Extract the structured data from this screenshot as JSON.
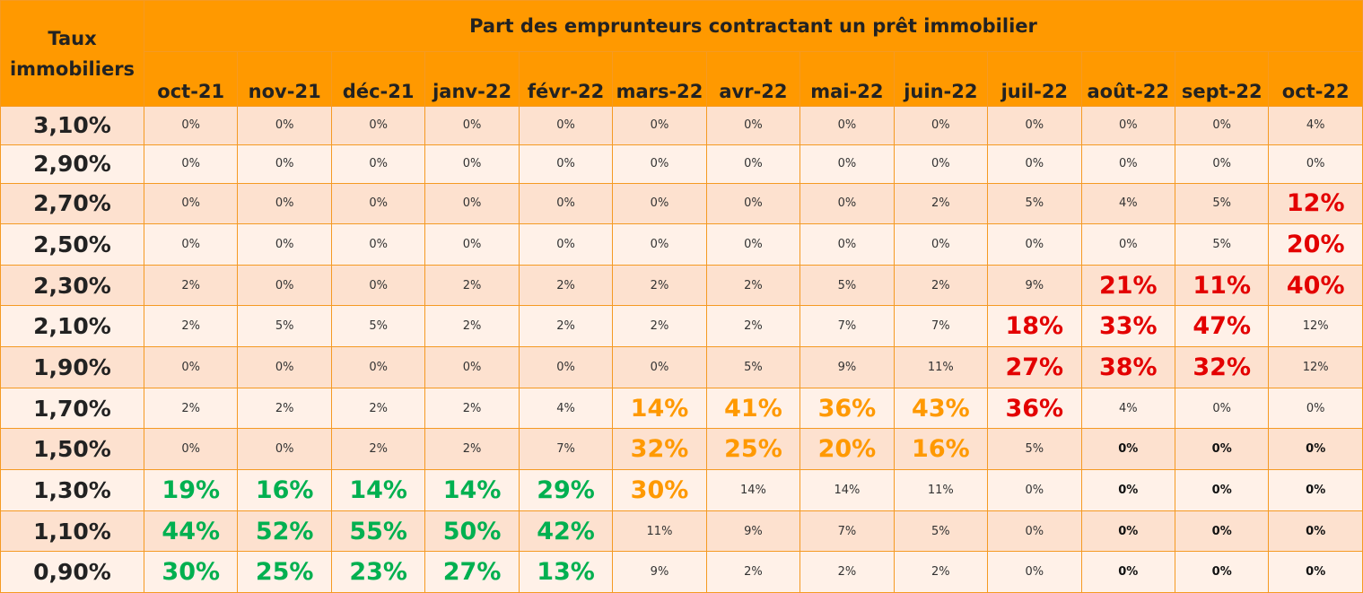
{
  "header": {
    "corner": "Taux immobiliers",
    "title": "Part des emprunteurs contractant un prêt immobilier",
    "columns": [
      "oct-21",
      "nov-21",
      "déc-21",
      "janv-22",
      "févr-22",
      "mars-22",
      "avr-22",
      "mai-22",
      "juin-22",
      "juil-22",
      "août-22",
      "sept-22",
      "oct-22"
    ]
  },
  "table": {
    "rows": [
      {
        "rate": "3,10%",
        "cells": [
          "0%",
          "0%",
          "0%",
          "0%",
          "0%",
          "0%",
          "0%",
          "0%",
          "0%",
          "0%",
          "0%",
          "0%",
          "4%"
        ]
      },
      {
        "rate": "2,90%",
        "cells": [
          "0%",
          "0%",
          "0%",
          "0%",
          "0%",
          "0%",
          "0%",
          "0%",
          "0%",
          "0%",
          "0%",
          "0%",
          "0%"
        ]
      },
      {
        "rate": "2,70%",
        "cells": [
          "0%",
          "0%",
          "0%",
          "0%",
          "0%",
          "0%",
          "0%",
          "0%",
          "2%",
          "5%",
          "4%",
          "5%",
          "12%"
        ]
      },
      {
        "rate": "2,50%",
        "cells": [
          "0%",
          "0%",
          "0%",
          "0%",
          "0%",
          "0%",
          "0%",
          "0%",
          "0%",
          "0%",
          "0%",
          "5%",
          "20%"
        ]
      },
      {
        "rate": "2,30%",
        "cells": [
          "2%",
          "0%",
          "0%",
          "2%",
          "2%",
          "2%",
          "2%",
          "5%",
          "2%",
          "9%",
          "21%",
          "11%",
          "40%"
        ]
      },
      {
        "rate": "2,10%",
        "cells": [
          "2%",
          "5%",
          "5%",
          "2%",
          "2%",
          "2%",
          "2%",
          "7%",
          "7%",
          "18%",
          "33%",
          "47%",
          "12%"
        ]
      },
      {
        "rate": "1,90%",
        "cells": [
          "0%",
          "0%",
          "0%",
          "0%",
          "0%",
          "0%",
          "5%",
          "9%",
          "11%",
          "27%",
          "38%",
          "32%",
          "12%"
        ]
      },
      {
        "rate": "1,70%",
        "cells": [
          "2%",
          "2%",
          "2%",
          "2%",
          "4%",
          "14%",
          "41%",
          "36%",
          "43%",
          "36%",
          "4%",
          "0%",
          "0%"
        ]
      },
      {
        "rate": "1,50%",
        "cells": [
          "0%",
          "0%",
          "2%",
          "2%",
          "7%",
          "32%",
          "25%",
          "20%",
          "16%",
          "5%",
          "0%",
          "0%",
          "0%"
        ]
      },
      {
        "rate": "1,30%",
        "cells": [
          "19%",
          "16%",
          "14%",
          "14%",
          "29%",
          "30%",
          "14%",
          "14%",
          "11%",
          "0%",
          "0%",
          "0%",
          "0%"
        ]
      },
      {
        "rate": "1,10%",
        "cells": [
          "44%",
          "52%",
          "55%",
          "50%",
          "42%",
          "11%",
          "9%",
          "7%",
          "5%",
          "0%",
          "0%",
          "0%",
          "0%"
        ]
      },
      {
        "rate": "0,90%",
        "cells": [
          "30%",
          "25%",
          "23%",
          "27%",
          "13%",
          "9%",
          "2%",
          "2%",
          "2%",
          "0%",
          "0%",
          "0%",
          "0%"
        ]
      }
    ]
  }
}
